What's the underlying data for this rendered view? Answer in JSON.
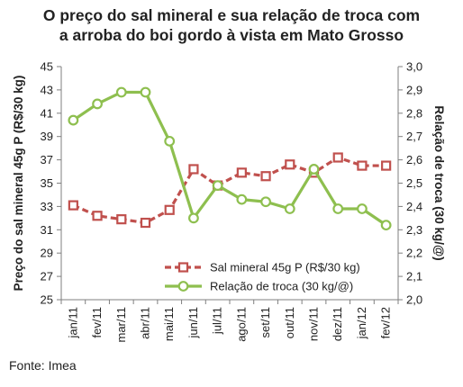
{
  "chart_data": {
    "type": "line",
    "title_lines": [
      "O preço do sal mineral e sua relação de troca com",
      "a arroba do boi gordo à vista em Mato Grosso"
    ],
    "categories": [
      "jan/11",
      "fev/11",
      "mar/11",
      "abr/11",
      "mai/11",
      "jun/11",
      "jul/11",
      "ago/11",
      "set/11",
      "out/11",
      "nov/11",
      "dez/11",
      "jan/12",
      "fev/12"
    ],
    "ylabel_left": "Preço do sal mineral 45g P (R$/30 kg)",
    "ylabel_right": "Relação de troca (30 kg/@)",
    "ylim_left": [
      25,
      45
    ],
    "yticks_left": [
      "25",
      "27",
      "29",
      "31",
      "33",
      "35",
      "37",
      "39",
      "41",
      "43",
      "45"
    ],
    "ylim_right": [
      2.0,
      3.0
    ],
    "yticks_right": [
      "2,0",
      "2,1",
      "2,2",
      "2,3",
      "2,4",
      "2,5",
      "2,6",
      "2,7",
      "2,8",
      "2,9",
      "3,0"
    ],
    "series": [
      {
        "name": "Sal mineral 45g P (R$/30 kg)",
        "axis": "left",
        "color": "#c0504d",
        "line_style": "dashed",
        "marker": "square",
        "values": [
          33.1,
          32.2,
          31.9,
          31.6,
          32.7,
          36.2,
          34.8,
          35.9,
          35.6,
          36.6,
          35.9,
          37.2,
          36.5,
          36.5
        ]
      },
      {
        "name": "Relação de troca (30 kg/@)",
        "axis": "right",
        "color": "#8ebf4f",
        "line_style": "solid",
        "marker": "circle",
        "values": [
          2.77,
          2.84,
          2.89,
          2.89,
          2.68,
          2.35,
          2.49,
          2.43,
          2.42,
          2.39,
          2.56,
          2.39,
          2.39,
          2.32
        ]
      }
    ],
    "grid": false,
    "legend_position": "bottom-right",
    "source": "Fonte: Imea"
  }
}
